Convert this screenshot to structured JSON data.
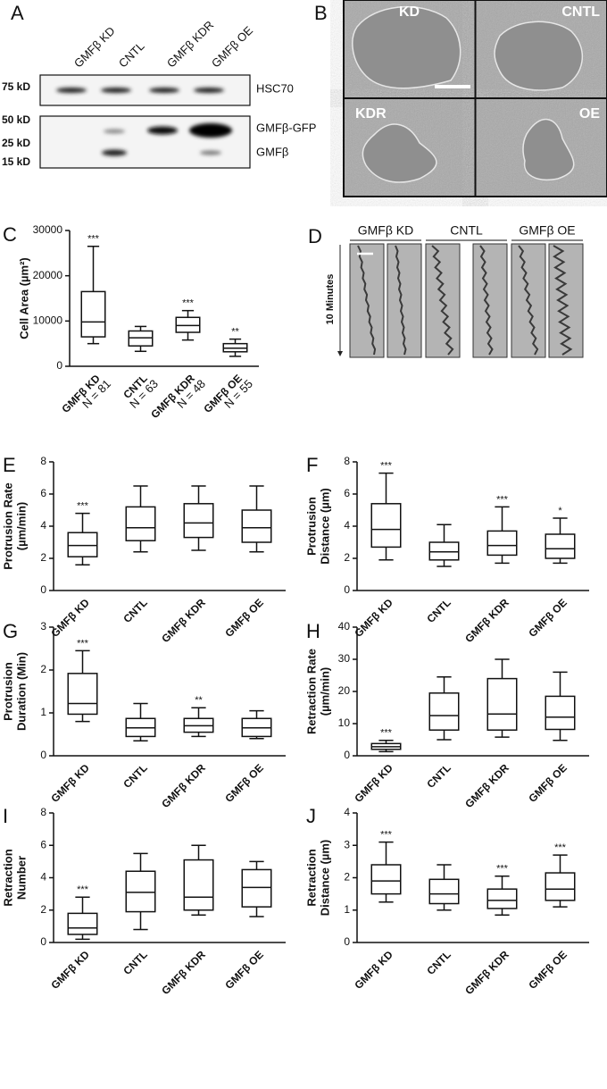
{
  "panels": {
    "A": {
      "label": "A",
      "lanes": [
        "GMFβ KD",
        "CNTL",
        "GMFβ KDR",
        "GMFβ OE"
      ],
      "markers": [
        "75 kD",
        "50 kD",
        "25 kD",
        "15 kD"
      ],
      "bands": [
        "HSC70",
        "GMFβ-GFP",
        "GMFβ"
      ]
    },
    "B": {
      "label": "B",
      "images": [
        "KD",
        "CNTL",
        "KDR",
        "OE"
      ]
    },
    "D": {
      "label": "D",
      "groups": [
        "GMFβ KD",
        "CNTL",
        "GMFβ OE"
      ],
      "axis": "10 Minutes"
    }
  },
  "chart_data": [
    {
      "type": "box",
      "panel": "C",
      "ylabel": [
        "Cell Area (µm²)"
      ],
      "categories": [
        "GMFβ KD",
        "CNTL",
        "GMFβ KDR",
        "GMFβ OE"
      ],
      "n": [
        "N = 81",
        "N = 63",
        "N = 48",
        "N = 55"
      ],
      "ylim": [
        0,
        30000
      ],
      "yticks": [
        0,
        10000,
        20000,
        30000
      ],
      "boxes": [
        {
          "whislo": 5000,
          "q1": 6500,
          "med": 9800,
          "q3": 16500,
          "whishi": 26500
        },
        {
          "whislo": 3300,
          "q1": 4500,
          "med": 6300,
          "q3": 7800,
          "whishi": 8800
        },
        {
          "whislo": 5800,
          "q1": 7500,
          "med": 9000,
          "q3": 10800,
          "whishi": 12300
        },
        {
          "whislo": 2200,
          "q1": 3200,
          "med": 4000,
          "q3": 5000,
          "whishi": 6000
        }
      ],
      "significance": [
        "***",
        null,
        "***",
        "**"
      ]
    },
    {
      "type": "box",
      "panel": "E",
      "ylabel": [
        "Protrusion Rate",
        "(µm/min)"
      ],
      "categories": [
        "GMFβ KD",
        "CNTL",
        "GMFβ KDR",
        "GMFβ OE"
      ],
      "ylim": [
        0,
        8
      ],
      "yticks": [
        0,
        2,
        4,
        6,
        8
      ],
      "boxes": [
        {
          "whislo": 1.6,
          "q1": 2.1,
          "med": 2.8,
          "q3": 3.6,
          "whishi": 4.8
        },
        {
          "whislo": 2.4,
          "q1": 3.1,
          "med": 3.9,
          "q3": 5.2,
          "whishi": 6.5
        },
        {
          "whislo": 2.5,
          "q1": 3.3,
          "med": 4.2,
          "q3": 5.4,
          "whishi": 6.5
        },
        {
          "whislo": 2.4,
          "q1": 3.0,
          "med": 3.9,
          "q3": 5.0,
          "whishi": 6.5
        }
      ],
      "significance": [
        "***",
        null,
        null,
        null
      ]
    },
    {
      "type": "box",
      "panel": "F",
      "ylabel": [
        "Protrusion",
        "Distance (µm)"
      ],
      "categories": [
        "GMFβ KD",
        "CNTL",
        "GMFβ KDR",
        "GMFβ OE"
      ],
      "ylim": [
        0,
        8
      ],
      "yticks": [
        0,
        2,
        4,
        6,
        8
      ],
      "boxes": [
        {
          "whislo": 1.9,
          "q1": 2.7,
          "med": 3.8,
          "q3": 5.4,
          "whishi": 7.3
        },
        {
          "whislo": 1.5,
          "q1": 1.9,
          "med": 2.4,
          "q3": 3.0,
          "whishi": 4.1
        },
        {
          "whislo": 1.7,
          "q1": 2.2,
          "med": 2.8,
          "q3": 3.7,
          "whishi": 5.2
        },
        {
          "whislo": 1.7,
          "q1": 2.0,
          "med": 2.6,
          "q3": 3.5,
          "whishi": 4.5
        }
      ],
      "significance": [
        "***",
        null,
        "***",
        "*"
      ]
    },
    {
      "type": "box",
      "panel": "G",
      "ylabel": [
        "Protrusion",
        "Duration (Min)"
      ],
      "categories": [
        "GMFβ KD",
        "CNTL",
        "GMFβ KDR",
        "GMFβ OE"
      ],
      "ylim": [
        0,
        3
      ],
      "yticks": [
        0,
        1,
        2,
        3
      ],
      "boxes": [
        {
          "whislo": 0.8,
          "q1": 0.97,
          "med": 1.22,
          "q3": 1.92,
          "whishi": 2.45
        },
        {
          "whislo": 0.35,
          "q1": 0.45,
          "med": 0.65,
          "q3": 0.87,
          "whishi": 1.22
        },
        {
          "whislo": 0.45,
          "q1": 0.55,
          "med": 0.7,
          "q3": 0.87,
          "whishi": 1.12
        },
        {
          "whislo": 0.4,
          "q1": 0.45,
          "med": 0.65,
          "q3": 0.87,
          "whishi": 1.05
        }
      ],
      "significance": [
        "***",
        null,
        "**",
        null
      ]
    },
    {
      "type": "box",
      "panel": "H",
      "ylabel": [
        "Retraction Rate",
        "(µm/min)"
      ],
      "categories": [
        "GMFβ KD",
        "CNTL",
        "GMFβ KDR",
        "GMFβ OE"
      ],
      "ylim": [
        0,
        40
      ],
      "yticks": [
        0,
        10,
        20,
        30,
        40
      ],
      "boxes": [
        {
          "whislo": 1.3,
          "q1": 2,
          "med": 2.8,
          "q3": 3.8,
          "whishi": 4.8
        },
        {
          "whislo": 5,
          "q1": 8,
          "med": 12.5,
          "q3": 19.5,
          "whishi": 24.5
        },
        {
          "whislo": 5.8,
          "q1": 8,
          "med": 13,
          "q3": 24,
          "whishi": 30
        },
        {
          "whislo": 4.8,
          "q1": 8.2,
          "med": 12,
          "q3": 18.5,
          "whishi": 26
        }
      ],
      "significance": [
        "***",
        null,
        null,
        null
      ]
    },
    {
      "type": "box",
      "panel": "I",
      "ylabel": [
        "Retraction",
        "Number"
      ],
      "categories": [
        "GMFβ KD",
        "CNTL",
        "GMFβ KDR",
        "GMFβ OE"
      ],
      "ylim": [
        0,
        8
      ],
      "yticks": [
        0,
        2,
        4,
        6,
        8
      ],
      "boxes": [
        {
          "whislo": 0.2,
          "q1": 0.5,
          "med": 0.9,
          "q3": 1.8,
          "whishi": 2.8
        },
        {
          "whislo": 0.8,
          "q1": 1.9,
          "med": 3.1,
          "q3": 4.4,
          "whishi": 5.5
        },
        {
          "whislo": 1.7,
          "q1": 2.0,
          "med": 2.8,
          "q3": 5.1,
          "whishi": 6.0
        },
        {
          "whislo": 1.6,
          "q1": 2.2,
          "med": 3.4,
          "q3": 4.5,
          "whishi": 5.0
        }
      ],
      "significance": [
        "***",
        null,
        null,
        null
      ]
    },
    {
      "type": "box",
      "panel": "J",
      "ylabel": [
        "Retraction",
        "Distance (µm)"
      ],
      "categories": [
        "GMFβ KD",
        "CNTL",
        "GMFβ KDR",
        "GMFβ OE"
      ],
      "ylim": [
        0,
        4
      ],
      "yticks": [
        0,
        1,
        2,
        3,
        4
      ],
      "boxes": [
        {
          "whislo": 1.25,
          "q1": 1.5,
          "med": 1.9,
          "q3": 2.4,
          "whishi": 3.1
        },
        {
          "whislo": 1.0,
          "q1": 1.2,
          "med": 1.5,
          "q3": 1.95,
          "whishi": 2.4
        },
        {
          "whislo": 0.85,
          "q1": 1.05,
          "med": 1.3,
          "q3": 1.65,
          "whishi": 2.05
        },
        {
          "whislo": 1.1,
          "q1": 1.3,
          "med": 1.65,
          "q3": 2.15,
          "whishi": 2.7
        }
      ],
      "significance": [
        "***",
        null,
        "***",
        "***"
      ]
    }
  ]
}
